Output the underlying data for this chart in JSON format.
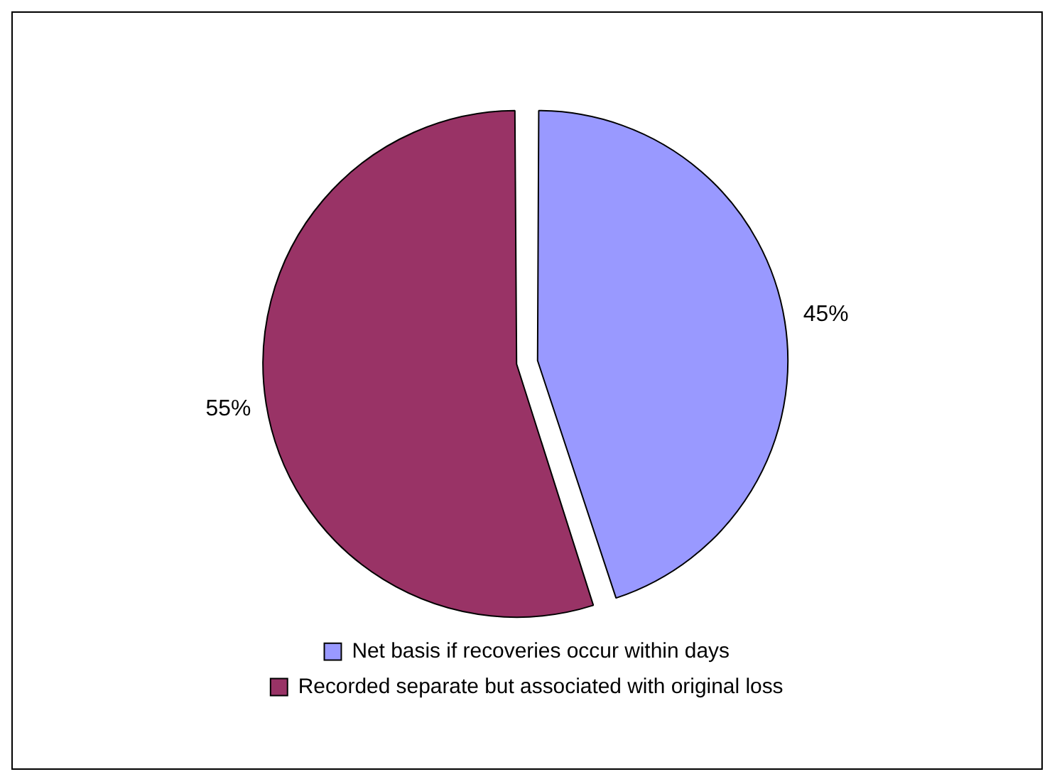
{
  "chart_data": {
    "type": "pie",
    "categories": [
      "Net basis if recoveries occur within days",
      "Recorded separate but associated with original loss"
    ],
    "values": [
      45,
      55
    ],
    "colors": [
      "#9999ff",
      "#993366"
    ],
    "value_labels": [
      "45%",
      "55%"
    ],
    "legend": "bottom"
  }
}
